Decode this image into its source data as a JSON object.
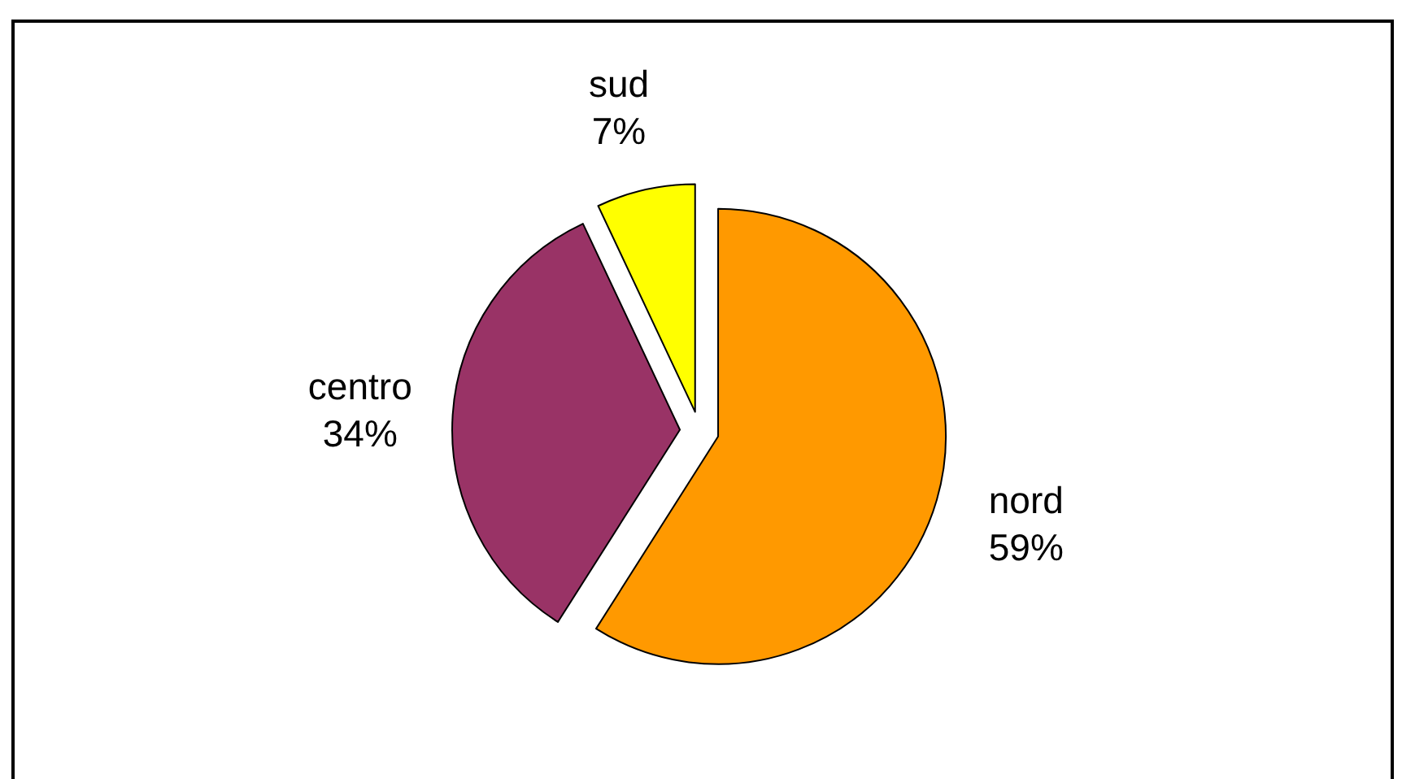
{
  "chart_data": {
    "type": "pie",
    "categories": [
      "nord",
      "centro",
      "sud"
    ],
    "values": [
      59,
      34,
      7
    ],
    "colors": [
      "#ff9900",
      "#993366",
      "#ffff00"
    ],
    "value_labels": [
      "59%",
      "34%",
      "7%"
    ],
    "legend": false
  }
}
